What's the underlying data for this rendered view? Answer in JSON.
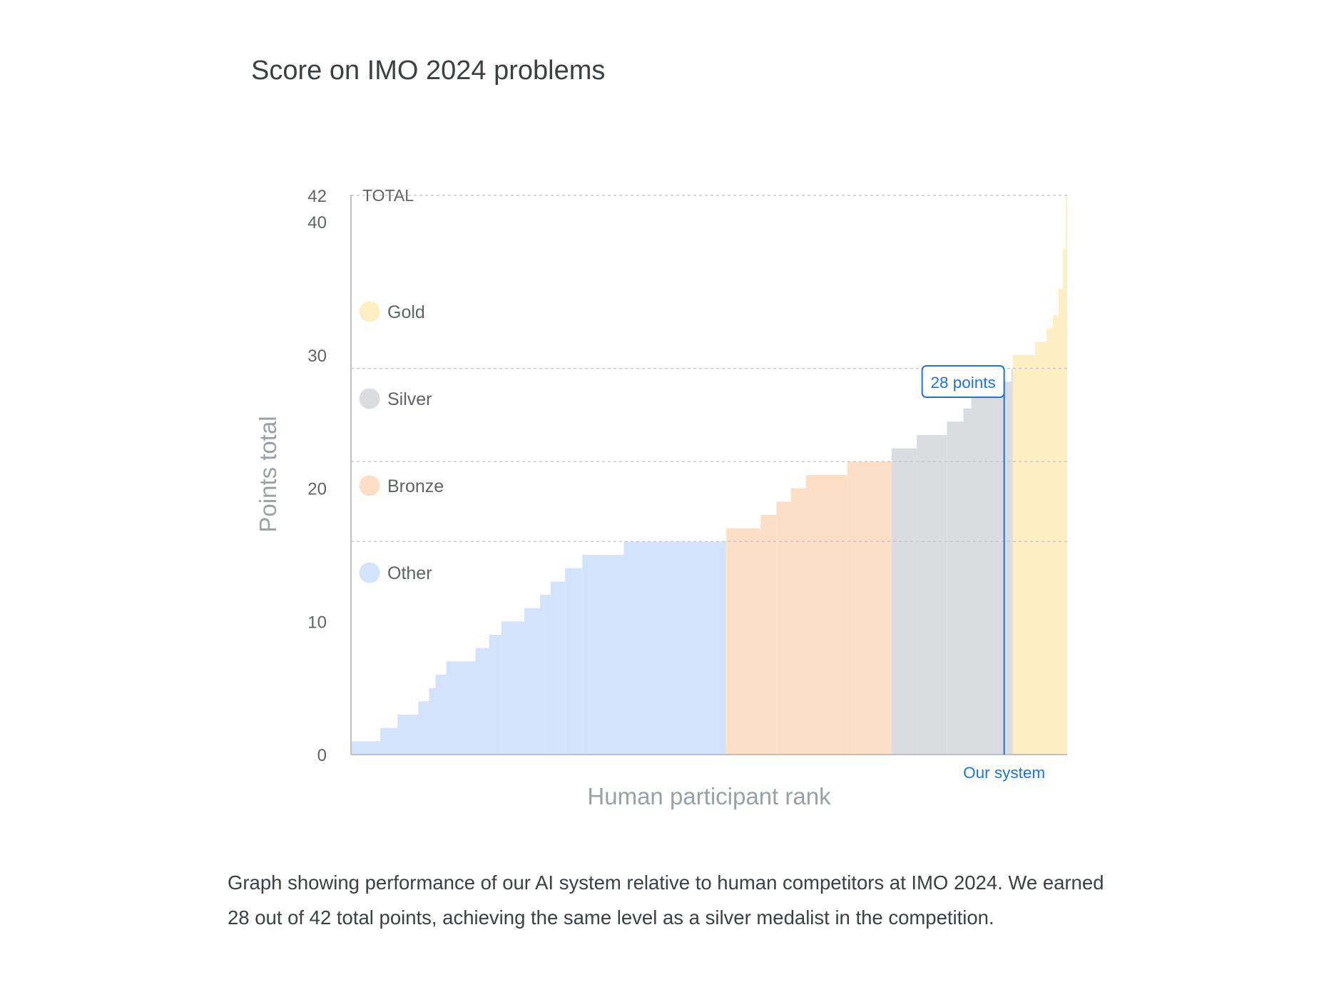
{
  "page": {
    "title": "Score on IMO 2024 problems",
    "caption": "Graph showing performance of our AI system relative to human competitors at IMO 2024. We earned 28 out of 42 total points, achieving the same level as a silver medalist in the competition."
  },
  "chart_data": {
    "type": "area",
    "title": "Score on IMO 2024 problems",
    "xlabel": "Human participant rank",
    "ylabel": "Points total",
    "ylim": [
      0,
      42
    ],
    "yticks": [
      0,
      10,
      20,
      30,
      40,
      42
    ],
    "grid": true,
    "top_line_label": "TOTAL",
    "thresholds": [
      {
        "name": "Bronze",
        "value": 16
      },
      {
        "name": "Silver",
        "value": 22
      },
      {
        "name": "Gold",
        "value": 29
      }
    ],
    "legend": {
      "placement": "left, inside plot",
      "entries": [
        {
          "label": "Gold",
          "color": "#fdefc3"
        },
        {
          "label": "Silver",
          "color": "#dadce0"
        },
        {
          "label": "Bronze",
          "color": "#fddfc7"
        },
        {
          "label": "Other",
          "color": "#d3e3fc"
        }
      ]
    },
    "colors": {
      "Other": "#d3e3fc",
      "Bronze": "#fddfc7",
      "Silver": "#dadce0",
      "Gold": "#fdefc3",
      "marker": "#1a73e8"
    },
    "series": [
      {
        "name": "Other",
        "x": [
          0,
          0.041,
          0.065,
          0.094,
          0.109,
          0.118,
          0.133,
          0.174,
          0.193,
          0.21,
          0.242,
          0.264,
          0.279,
          0.299,
          0.323,
          0.381,
          0.445
        ],
        "y": [
          1,
          2,
          3,
          4,
          5,
          6,
          7,
          8,
          9,
          10,
          11,
          12,
          13,
          14,
          15,
          16,
          16
        ]
      },
      {
        "name": "Bronze",
        "x": [
          0.524,
          0.572,
          0.594,
          0.614,
          0.635,
          0.693
        ],
        "y": [
          17,
          18,
          19,
          20,
          21,
          22
        ]
      },
      {
        "name": "Silver",
        "x": [
          0.755,
          0.79,
          0.832,
          0.855,
          0.866,
          0.884,
          0.922
        ],
        "y": [
          23,
          24,
          25,
          26,
          27,
          28,
          29
        ]
      },
      {
        "name": "Gold",
        "x": [
          0.924,
          0.955,
          0.971,
          0.98,
          0.988,
          0.994,
          0.998
        ],
        "y": [
          30,
          31,
          32,
          33,
          35,
          38,
          42
        ]
      }
    ],
    "series_end_x": 1.0,
    "marker": {
      "label": "28 points",
      "value": 28,
      "x": 0.912,
      "x_label": "Our system"
    }
  }
}
